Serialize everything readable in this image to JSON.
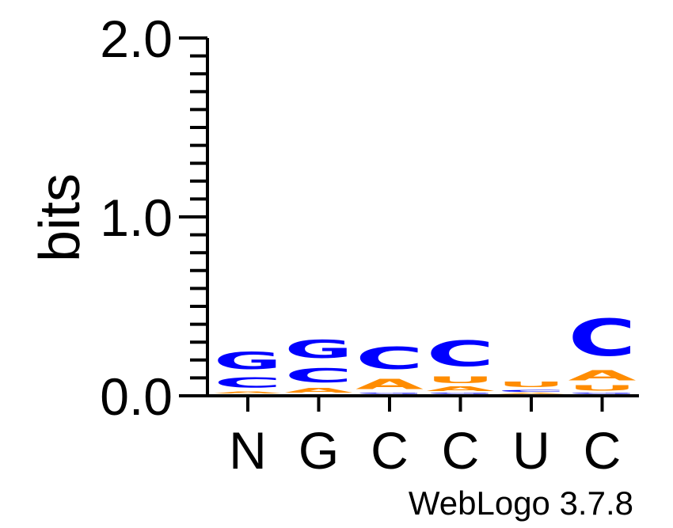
{
  "chart_data": {
    "type": "sequence-logo",
    "ylabel": "bits",
    "ylim": [
      0,
      2.0
    ],
    "y_ticks": [
      "0.0",
      "1.0",
      "2.0"
    ],
    "positions": [
      "N",
      "G",
      "C",
      "C",
      "U",
      "C"
    ],
    "stacks": [
      [
        {
          "letter": "A",
          "bits": 0.02,
          "color": "#ff8c00"
        },
        {
          "letter": "C",
          "bits": 0.09,
          "color": "#0000ff"
        },
        {
          "letter": "G",
          "bits": 0.15,
          "color": "#0000ff"
        }
      ],
      [
        {
          "letter": "A",
          "bits": 0.04,
          "color": "#ff8c00"
        },
        {
          "letter": "C",
          "bits": 0.13,
          "color": "#0000ff"
        },
        {
          "letter": "G",
          "bits": 0.16,
          "color": "#0000ff"
        }
      ],
      [
        {
          "letter": "G",
          "bits": 0.01,
          "color": "#0000ff"
        },
        {
          "letter": "A",
          "bits": 0.09,
          "color": "#ff8c00"
        },
        {
          "letter": "C",
          "bits": 0.2,
          "color": "#0000ff"
        }
      ],
      [
        {
          "letter": "G",
          "bits": 0.01,
          "color": "#0000ff"
        },
        {
          "letter": "A",
          "bits": 0.04,
          "color": "#ff8c00"
        },
        {
          "letter": "U",
          "bits": 0.06,
          "color": "#ff8c00"
        },
        {
          "letter": "C",
          "bits": 0.23,
          "color": "#0000ff"
        }
      ],
      [
        {
          "letter": "A",
          "bits": 0.01,
          "color": "#ff8c00"
        },
        {
          "letter": "C",
          "bits": 0.02,
          "color": "#0000ff"
        },
        {
          "letter": "U",
          "bits": 0.05,
          "color": "#ff8c00"
        }
      ],
      [
        {
          "letter": "G",
          "bits": 0.01,
          "color": "#0000ff"
        },
        {
          "letter": "U",
          "bits": 0.05,
          "color": "#ff8c00"
        },
        {
          "letter": "A",
          "bits": 0.09,
          "color": "#ff8c00"
        },
        {
          "letter": "C",
          "bits": 0.33,
          "color": "#0000ff"
        }
      ]
    ],
    "colors": {
      "A": "#ff8c00",
      "U": "#ff8c00",
      "C": "#0000ff",
      "G": "#0000ff"
    },
    "credit": "WebLogo 3.7.8"
  }
}
